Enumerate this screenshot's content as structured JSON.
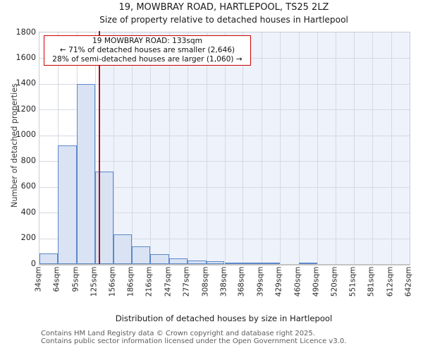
{
  "title": "19, MOWBRAY ROAD, HARTLEPOOL, TS25 2LZ",
  "subtitle": "Size of property relative to detached houses in Hartlepool",
  "annotation": {
    "line1": "19 MOWBRAY ROAD: 133sqm",
    "line2": "← 71% of detached houses are smaller (2,646)",
    "line3": "28% of semi-detached houses are larger (1,060) →"
  },
  "chart_data": {
    "type": "bar",
    "title": "19, MOWBRAY ROAD, HARTLEPOOL, TS25 2LZ — Size of property relative to detached houses in Hartlepool",
    "xlabel": "Distribution of detached houses by size in Hartlepool",
    "ylabel": "Number of detached properties",
    "bin_edges_sqm": [
      34,
      64,
      95,
      125,
      156,
      186,
      216,
      247,
      277,
      308,
      338,
      368,
      399,
      429,
      460,
      490,
      520,
      551,
      581,
      612,
      642
    ],
    "categories": [
      "34sqm",
      "64sqm",
      "95sqm",
      "125sqm",
      "156sqm",
      "186sqm",
      "216sqm",
      "247sqm",
      "277sqm",
      "308sqm",
      "338sqm",
      "368sqm",
      "399sqm",
      "429sqm",
      "460sqm",
      "490sqm",
      "520sqm",
      "551sqm",
      "581sqm",
      "612sqm",
      "642sqm"
    ],
    "values": [
      80,
      920,
      1400,
      720,
      230,
      135,
      75,
      45,
      25,
      20,
      10,
      5,
      5,
      0,
      5,
      0,
      0,
      0,
      0,
      0
    ],
    "ylim": [
      0,
      1800
    ],
    "yticks": [
      0,
      200,
      400,
      600,
      800,
      1000,
      1200,
      1400,
      1600,
      1800
    ],
    "grid": true,
    "legend": "none",
    "marker": {
      "label": "19 MOWBRAY ROAD",
      "value_sqm": 133,
      "color": "#aa1111"
    }
  },
  "colors": {
    "bar_fill": "#d9e3f4",
    "bar_edge": "#5b88c9",
    "gridline": "#d4d9e2",
    "shade_right_of_marker": "#eef2fb",
    "marker_line": "#aa1111",
    "annotation_border": "#cc0000"
  },
  "footer": {
    "line1": "Contains HM Land Registry data © Crown copyright and database right 2025.",
    "line2": "Contains public sector information licensed under the Open Government Licence v3.0."
  }
}
